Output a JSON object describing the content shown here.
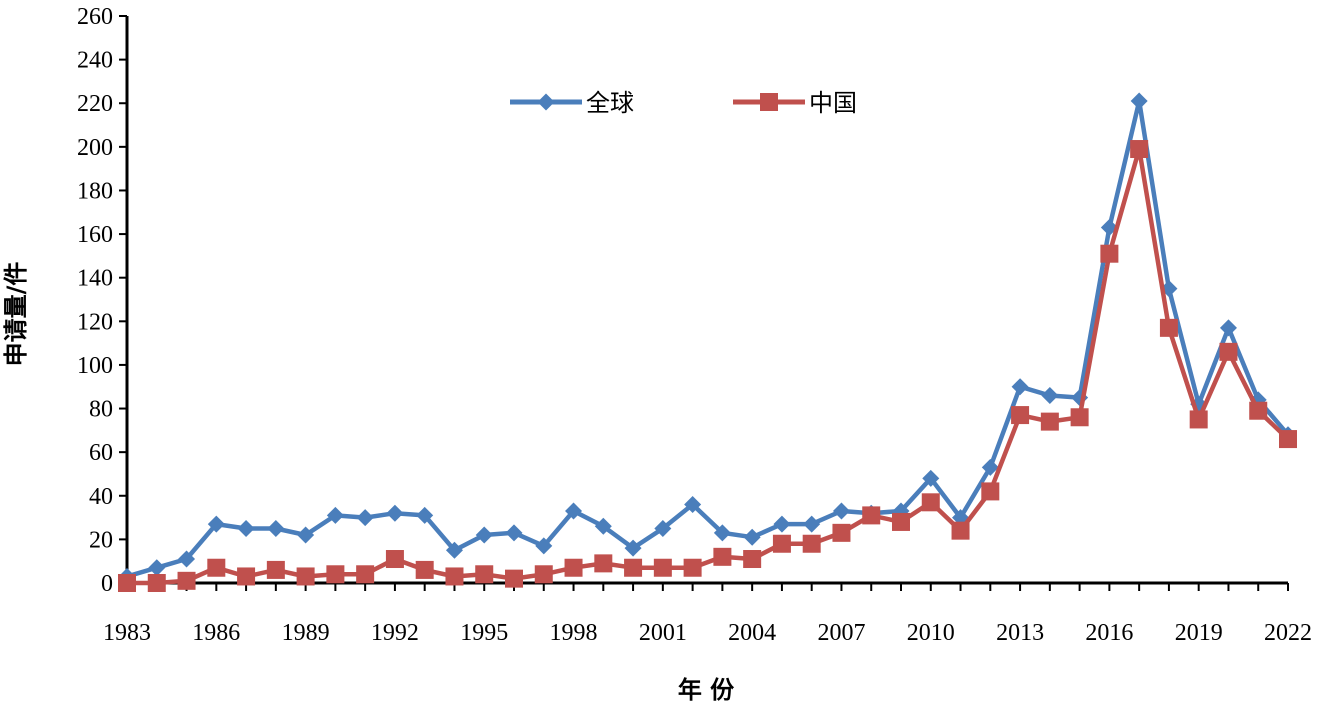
{
  "chart_data": {
    "type": "line",
    "title": "",
    "xlabel": "年 份",
    "ylabel": "申请量/件",
    "ylim": [
      0,
      260
    ],
    "ytick_step": 20,
    "x_start": 1983,
    "x_end": 2022,
    "xtick_labels": [
      "1983",
      "1986",
      "1989",
      "1992",
      "1995",
      "1998",
      "2001",
      "2004",
      "2007",
      "2010",
      "2013",
      "2016",
      "2019",
      "2022"
    ],
    "x": [
      1983,
      1984,
      1985,
      1986,
      1987,
      1988,
      1989,
      1990,
      1991,
      1992,
      1993,
      1994,
      1995,
      1996,
      1997,
      1998,
      1999,
      2000,
      2001,
      2002,
      2003,
      2004,
      2005,
      2006,
      2007,
      2008,
      2009,
      2010,
      2011,
      2012,
      2013,
      2014,
      2015,
      2016,
      2017,
      2018,
      2019,
      2020,
      2021,
      2022
    ],
    "legend_position": "top-center",
    "series": [
      {
        "name": "全球",
        "color": "#4A7EBB",
        "marker": "diamond",
        "values": [
          3,
          7,
          11,
          27,
          25,
          25,
          22,
          31,
          30,
          32,
          31,
          15,
          22,
          23,
          17,
          33,
          26,
          16,
          25,
          36,
          23,
          21,
          27,
          27,
          33,
          32,
          33,
          48,
          30,
          53,
          90,
          86,
          85,
          163,
          221,
          135,
          82,
          117,
          84,
          68
        ]
      },
      {
        "name": "中国",
        "color": "#C0504D",
        "marker": "square",
        "values": [
          0,
          0,
          1,
          7,
          3,
          6,
          3,
          4,
          4,
          11,
          6,
          3,
          4,
          2,
          4,
          7,
          9,
          7,
          7,
          7,
          12,
          11,
          18,
          18,
          23,
          31,
          28,
          37,
          24,
          42,
          77,
          74,
          76,
          151,
          199,
          117,
          75,
          106,
          79,
          66
        ]
      }
    ]
  }
}
